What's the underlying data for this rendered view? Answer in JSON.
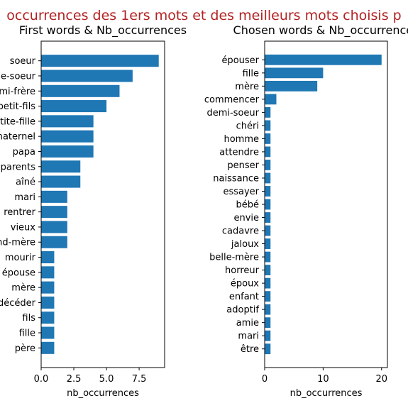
{
  "figure": {
    "suptitle": "occurrences des 1ers mots et des meilleurs mots choisis p",
    "suptitle_color": "#b22222",
    "bar_color": "#1f77b4"
  },
  "chart_data": [
    {
      "type": "bar",
      "orientation": "horizontal",
      "title": "First words & Nb_occurrences",
      "xlabel": "nb_occurrences",
      "ylabel": "",
      "xlim": [
        0,
        9.45
      ],
      "xticks": [
        0,
        2.5,
        5,
        7.5
      ],
      "xtick_labels": [
        "0.0",
        "2.5",
        "5.0",
        "7.5"
      ],
      "categories": [
        "soeur",
        "belle-soeur",
        "demi-frère",
        "petit-fils",
        "petite-fille",
        "maternel",
        "papa",
        "parents",
        "aîné",
        "mari",
        "rentrer",
        "vieux",
        "grand-mère",
        "mourir",
        "épouse",
        "mère",
        "décéder",
        "fils",
        "fille",
        "père"
      ],
      "values": [
        9,
        7,
        6,
        5,
        4,
        4,
        4,
        3,
        3,
        2,
        2,
        2,
        2,
        1,
        1,
        1,
        1,
        1,
        1,
        1
      ]
    },
    {
      "type": "bar",
      "orientation": "horizontal",
      "title": "Chosen words & Nb_occurrences",
      "xlabel": "nb_occurrences",
      "ylabel": "",
      "xlim": [
        0,
        21
      ],
      "xticks": [
        0,
        10,
        20
      ],
      "xtick_labels": [
        "0",
        "10",
        "20"
      ],
      "categories": [
        "épouser",
        "fille",
        "mère",
        "commencer",
        "demi-soeur",
        "chéri",
        "homme",
        "attendre",
        "penser",
        "naissance",
        "essayer",
        "bébé",
        "envie",
        "cadavre",
        "jaloux",
        "belle-mère",
        "horreur",
        "époux",
        "enfant",
        "adoptif",
        "amie",
        "mari",
        "être"
      ],
      "values": [
        20,
        10,
        9,
        2,
        1,
        1,
        1,
        1,
        1,
        1,
        1,
        1,
        1,
        1,
        1,
        1,
        1,
        1,
        1,
        1,
        1,
        1,
        1
      ]
    }
  ]
}
